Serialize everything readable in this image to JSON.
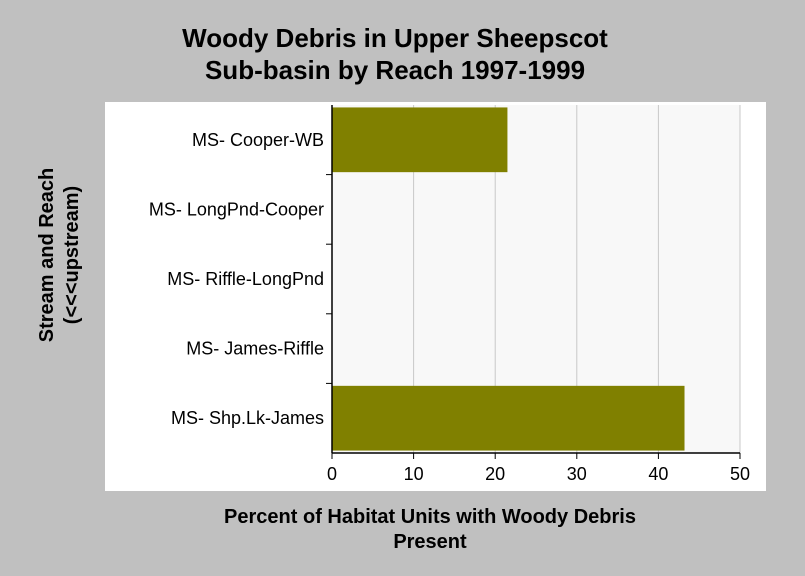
{
  "chart_data": {
    "type": "bar",
    "orientation": "horizontal",
    "title_lines": [
      "Woody Debris in Upper Sheepscot",
      "Sub-basin by Reach 1997-1999"
    ],
    "xlabel_lines": [
      "Percent of Habitat Units with Woody Debris",
      "Present"
    ],
    "ylabel_lines": [
      "Stream and Reach",
      "(<<<upstream)"
    ],
    "categories": [
      "MS- Cooper-WB",
      "MS- LongPnd-Cooper",
      "MS- Riffle-LongPnd",
      "MS- James-Riffle",
      "MS- Shp.Lk-James"
    ],
    "values": [
      21.5,
      0,
      0,
      0,
      43.2
    ],
    "xlim": [
      0,
      50
    ],
    "xticks": [
      0,
      10,
      20,
      30,
      40,
      50
    ],
    "grid": true,
    "bar_color": "#808000",
    "plot_background": "#f8f8f8",
    "page_background": "#c0c0c0"
  }
}
